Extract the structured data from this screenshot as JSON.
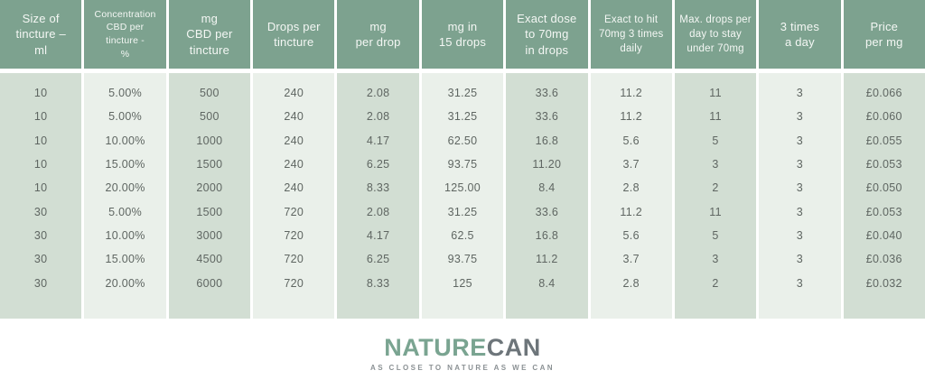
{
  "chart_data": {
    "type": "table",
    "columns": [
      {
        "label": "Size of\ntincture –\nml"
      },
      {
        "label": "Concentration\nCBD per\ntincture -\n%",
        "size": "sm"
      },
      {
        "label": "mg\nCBD per\ntincture"
      },
      {
        "label": "Drops per\ntincture"
      },
      {
        "label": "mg\nper drop"
      },
      {
        "label": "mg in\n15 drops"
      },
      {
        "label": "Exact dose\nto 70mg\nin drops"
      },
      {
        "label": "Exact to hit\n70mg 3 times\ndaily",
        "size": "md"
      },
      {
        "label": "Max. drops per\nday to stay\nunder 70mg",
        "size": "md"
      },
      {
        "label": "3 times\na day"
      },
      {
        "label": "Price\nper mg"
      }
    ],
    "rows": [
      [
        "10",
        "5.00%",
        "500",
        "240",
        "2.08",
        "31.25",
        "33.6",
        "11.2",
        "11",
        "3",
        "£0.066"
      ],
      [
        "10",
        "5.00%",
        "500",
        "240",
        "2.08",
        "31.25",
        "33.6",
        "11.2",
        "11",
        "3",
        "£0.060"
      ],
      [
        "10",
        "10.00%",
        "1000",
        "240",
        "4.17",
        "62.50",
        "16.8",
        "5.6",
        "5",
        "3",
        "£0.055"
      ],
      [
        "10",
        "15.00%",
        "1500",
        "240",
        "6.25",
        "93.75",
        "11.20",
        "3.7",
        "3",
        "3",
        "£0.053"
      ],
      [
        "10",
        "20.00%",
        "2000",
        "240",
        "8.33",
        "125.00",
        "8.4",
        "2.8",
        "2",
        "3",
        "£0.050"
      ],
      [
        "30",
        "5.00%",
        "1500",
        "720",
        "2.08",
        "31.25",
        "33.6",
        "11.2",
        "11",
        "3",
        "£0.053"
      ],
      [
        "30",
        "10.00%",
        "3000",
        "720",
        "4.17",
        "62.5",
        "16.8",
        "5.6",
        "5",
        "3",
        "£0.040"
      ],
      [
        "30",
        "15.00%",
        "4500",
        "720",
        "6.25",
        "93.75",
        "11.2",
        "3.7",
        "3",
        "3",
        "£0.036"
      ],
      [
        "30",
        "20.00%",
        "6000",
        "720",
        "8.33",
        "125",
        "8.4",
        "2.8",
        "2",
        "3",
        "£0.032"
      ]
    ],
    "legend_position": "none",
    "grid": false
  },
  "logo": {
    "brand_primary": "NATURE",
    "brand_secondary": "CAN",
    "tagline": "AS CLOSE TO NATURE AS WE CAN"
  },
  "colors": {
    "header_bg": "#7da28f",
    "header_text": "#f4f7f4",
    "band_dark": "#d2ded3",
    "band_light": "#eaf0ea",
    "body_text": "#5f6662",
    "logo_green": "#7aa491",
    "logo_gray": "#6d757a",
    "tagline_gray": "#8b9194"
  }
}
